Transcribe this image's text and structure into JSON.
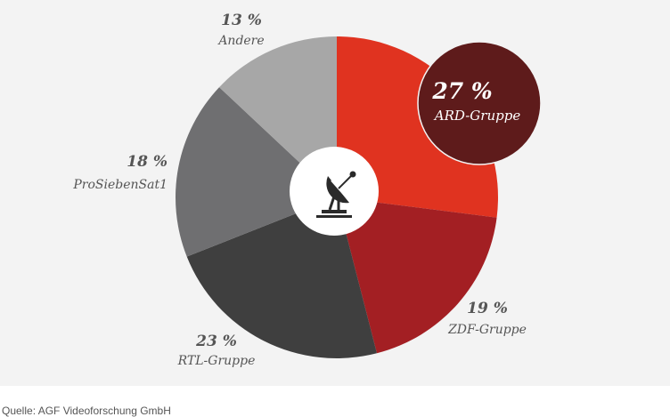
{
  "chart_data": {
    "type": "pie",
    "slices": [
      {
        "label": "ARD-Gruppe",
        "value": 27,
        "value_text": "27 %",
        "color": "#e03320"
      },
      {
        "label": "ZDF-Gruppe",
        "value": 19,
        "value_text": "19 %",
        "color": "#a31f23"
      },
      {
        "label": "RTL-Gruppe",
        "value": 23,
        "value_text": "23 %",
        "color": "#3f3f3f"
      },
      {
        "label": "ProSiebenSat1",
        "value": 18,
        "value_text": "18 %",
        "color": "#6f6f71"
      },
      {
        "label": "Andere",
        "value": 13,
        "value_text": "13 %",
        "color": "#a7a7a7"
      }
    ],
    "highlight": {
      "label": "ARD-Gruppe",
      "color": "#5e1b1b"
    },
    "center_icon": "satellite-dish-icon"
  },
  "source": "Quelle: AGF Videoforschung GmbH"
}
